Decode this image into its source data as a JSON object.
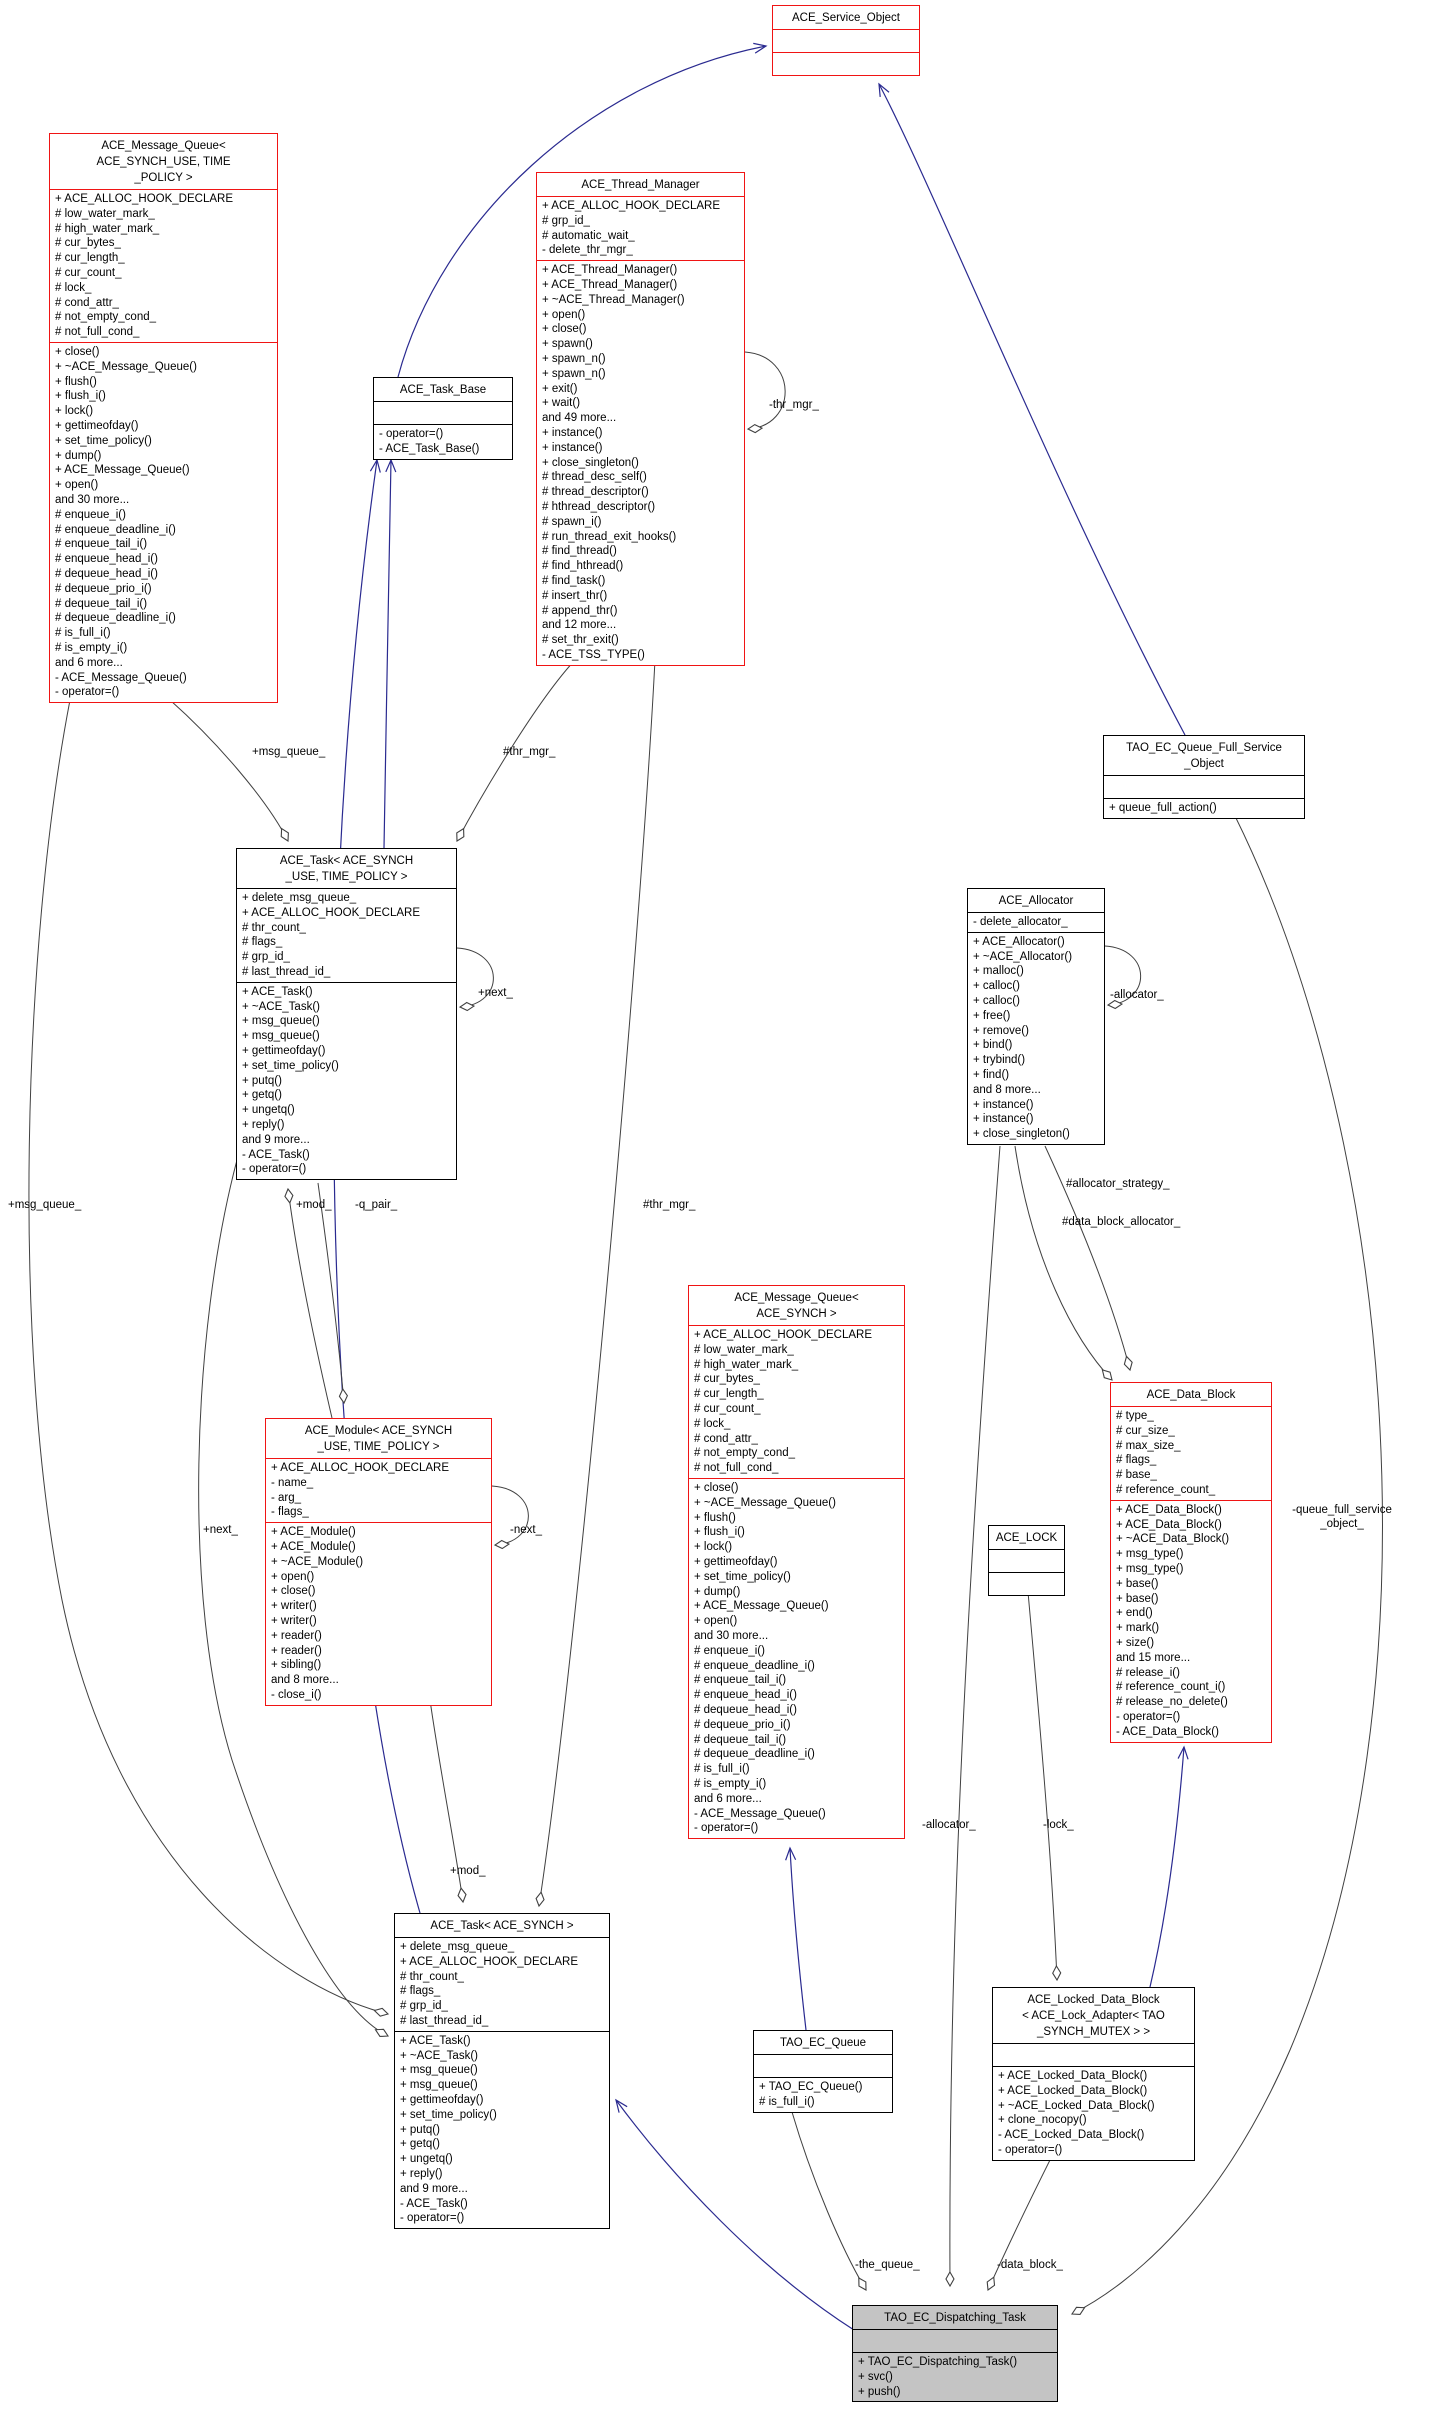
{
  "diagram": {
    "kind": "uml-collaboration-diagram",
    "subject": "TAO_EC_Dispatching_Task",
    "colors": {
      "inheritance_edge": "#2a2a90",
      "aggregation_edge": "#404040",
      "red_class_border": "#f01414",
      "black_class_border": "#000000",
      "highlight_fill": "#c4c4c4",
      "background": "#ffffff"
    }
  },
  "classes": [
    {
      "id": "service_object",
      "title": "ACE_Service_Object",
      "border": "red",
      "fill": "white",
      "attributes": [],
      "methods": []
    },
    {
      "id": "mq_tp",
      "title": "ACE_Message_Queue<\nACE_SYNCH_USE, TIME\n_POLICY >",
      "border": "red",
      "fill": "white",
      "attributes": [
        "+ ACE_ALLOC_HOOK_DECLARE",
        "# low_water_mark_",
        "# high_water_mark_",
        "# cur_bytes_",
        "# cur_length_",
        "# cur_count_",
        "# lock_",
        "# cond_attr_",
        "# not_empty_cond_",
        "# not_full_cond_"
      ],
      "methods": [
        "+ close()",
        "+ ~ACE_Message_Queue()",
        "+ flush()",
        "+ flush_i()",
        "+ lock()",
        "+ gettimeofday()",
        "+ set_time_policy()",
        "+ dump()",
        "+ ACE_Message_Queue()",
        "+ open()",
        "and 30 more...",
        "# enqueue_i()",
        "# enqueue_deadline_i()",
        "# enqueue_tail_i()",
        "# enqueue_head_i()",
        "# dequeue_head_i()",
        "# dequeue_prio_i()",
        "# dequeue_tail_i()",
        "# dequeue_deadline_i()",
        "# is_full_i()",
        "# is_empty_i()",
        "and 6 more...",
        "- ACE_Message_Queue()",
        "- operator=()"
      ]
    },
    {
      "id": "thread_manager",
      "title": "ACE_Thread_Manager",
      "border": "red",
      "fill": "white",
      "attributes": [
        "+ ACE_ALLOC_HOOK_DECLARE",
        "# grp_id_",
        "# automatic_wait_",
        "- delete_thr_mgr_"
      ],
      "methods": [
        "+ ACE_Thread_Manager()",
        "+ ACE_Thread_Manager()",
        "+ ~ACE_Thread_Manager()",
        "+ open()",
        "+ close()",
        "+ spawn()",
        "+ spawn_n()",
        "+ spawn_n()",
        "+ exit()",
        "+ wait()",
        "and 49 more...",
        "+ instance()",
        "+ instance()",
        "+ close_singleton()",
        "# thread_desc_self()",
        "# thread_descriptor()",
        "# hthread_descriptor()",
        "# spawn_i()",
        "# run_thread_exit_hooks()",
        "# find_thread()",
        "# find_hthread()",
        "# find_task()",
        "# insert_thr()",
        "# append_thr()",
        "and 12 more...",
        "# set_thr_exit()",
        "- ACE_TSS_TYPE()"
      ]
    },
    {
      "id": "task_base",
      "title": "ACE_Task_Base",
      "border": "black",
      "fill": "white",
      "attributes": [],
      "methods": [
        "- operator=()",
        "- ACE_Task_Base()"
      ]
    },
    {
      "id": "queue_full",
      "title": "TAO_EC_Queue_Full_Service\n_Object",
      "border": "black",
      "fill": "white",
      "attributes": [],
      "methods": [
        "+ queue_full_action()"
      ]
    },
    {
      "id": "task_tp",
      "title": "ACE_Task< ACE_SYNCH\n_USE, TIME_POLICY >",
      "border": "black",
      "fill": "white",
      "attributes": [
        "+ delete_msg_queue_",
        "+ ACE_ALLOC_HOOK_DECLARE",
        "# thr_count_",
        "# flags_",
        "# grp_id_",
        "# last_thread_id_"
      ],
      "methods": [
        "+ ACE_Task()",
        "+ ~ACE_Task()",
        "+ msg_queue()",
        "+ msg_queue()",
        "+ gettimeofday()",
        "+ set_time_policy()",
        "+ putq()",
        "+ getq()",
        "+ ungetq()",
        "+ reply()",
        "and 9 more...",
        "- ACE_Task()",
        "- operator=()"
      ]
    },
    {
      "id": "allocator",
      "title": "ACE_Allocator",
      "border": "black",
      "fill": "white",
      "attributes": [
        "- delete_allocator_"
      ],
      "methods": [
        "+ ACE_Allocator()",
        "+ ~ACE_Allocator()",
        "+ malloc()",
        "+ calloc()",
        "+ calloc()",
        "+ free()",
        "+ remove()",
        "+ bind()",
        "+ trybind()",
        "+ find()",
        "and 8 more...",
        "+ instance()",
        "+ instance()",
        "+ close_singleton()"
      ]
    },
    {
      "id": "module_tp",
      "title": "ACE_Module< ACE_SYNCH\n_USE, TIME_POLICY >",
      "border": "red",
      "fill": "white",
      "attributes": [
        "+ ACE_ALLOC_HOOK_DECLARE",
        "- name_",
        "- arg_",
        "- flags_"
      ],
      "methods": [
        "+ ACE_Module()",
        "+ ACE_Module()",
        "+ ~ACE_Module()",
        "+ open()",
        "+ close()",
        "+ writer()",
        "+ writer()",
        "+ reader()",
        "+ reader()",
        "+ sibling()",
        "and 8 more...",
        "- close_i()"
      ]
    },
    {
      "id": "mq_synch",
      "title": "ACE_Message_Queue<\nACE_SYNCH >",
      "border": "red",
      "fill": "white",
      "attributes": [
        "+ ACE_ALLOC_HOOK_DECLARE",
        "# low_water_mark_",
        "# high_water_mark_",
        "# cur_bytes_",
        "# cur_length_",
        "# cur_count_",
        "# lock_",
        "# cond_attr_",
        "# not_empty_cond_",
        "# not_full_cond_"
      ],
      "methods": [
        "+ close()",
        "+ ~ACE_Message_Queue()",
        "+ flush()",
        "+ flush_i()",
        "+ lock()",
        "+ gettimeofday()",
        "+ set_time_policy()",
        "+ dump()",
        "+ ACE_Message_Queue()",
        "+ open()",
        "and 30 more...",
        "# enqueue_i()",
        "# enqueue_deadline_i()",
        "# enqueue_tail_i()",
        "# enqueue_head_i()",
        "# dequeue_head_i()",
        "# dequeue_prio_i()",
        "# dequeue_tail_i()",
        "# dequeue_deadline_i()",
        "# is_full_i()",
        "# is_empty_i()",
        "and 6 more...",
        "- ACE_Message_Queue()",
        "- operator=()"
      ]
    },
    {
      "id": "data_block",
      "title": "ACE_Data_Block",
      "border": "red",
      "fill": "white",
      "attributes": [
        "# type_",
        "# cur_size_",
        "# max_size_",
        "# flags_",
        "# base_",
        "# reference_count_"
      ],
      "methods": [
        "+ ACE_Data_Block()",
        "+ ACE_Data_Block()",
        "+ ~ACE_Data_Block()",
        "+ msg_type()",
        "+ msg_type()",
        "+ base()",
        "+ base()",
        "+ end()",
        "+ mark()",
        "+ size()",
        "and 15 more...",
        "# release_i()",
        "# reference_count_i()",
        "# release_no_delete()",
        "- operator=()",
        "- ACE_Data_Block()"
      ]
    },
    {
      "id": "ace_lock",
      "title": "ACE_LOCK",
      "border": "black",
      "fill": "white",
      "attributes": [],
      "methods": []
    },
    {
      "id": "task_synch",
      "title": "ACE_Task< ACE_SYNCH >",
      "border": "black",
      "fill": "white",
      "attributes": [
        "+ delete_msg_queue_",
        "+ ACE_ALLOC_HOOK_DECLARE",
        "# thr_count_",
        "# flags_",
        "# grp_id_",
        "# last_thread_id_"
      ],
      "methods": [
        "+ ACE_Task()",
        "+ ~ACE_Task()",
        "+ msg_queue()",
        "+ msg_queue()",
        "+ gettimeofday()",
        "+ set_time_policy()",
        "+ putq()",
        "+ getq()",
        "+ ungetq()",
        "+ reply()",
        "and 9 more...",
        "- ACE_Task()",
        "- operator=()"
      ]
    },
    {
      "id": "ec_queue",
      "title": "TAO_EC_Queue",
      "border": "black",
      "fill": "white",
      "attributes": [],
      "methods": [
        "+ TAO_EC_Queue()",
        "# is_full_i()"
      ]
    },
    {
      "id": "locked_db",
      "title": "ACE_Locked_Data_Block\n< ACE_Lock_Adapter< TAO\n_SYNCH_MUTEX > >",
      "border": "black",
      "fill": "white",
      "attributes": [],
      "methods": [
        "+ ACE_Locked_Data_Block()",
        "+ ACE_Locked_Data_Block()",
        "+ ~ACE_Locked_Data_Block()",
        "+ clone_nocopy()",
        "- ACE_Locked_Data_Block()",
        "- operator=()"
      ]
    },
    {
      "id": "dispatching",
      "title": "TAO_EC_Dispatching_Task",
      "border": "black",
      "fill": "gray",
      "attributes": [],
      "methods": [
        "+ TAO_EC_Dispatching_Task()",
        "+ svc()",
        "+ push()"
      ]
    }
  ],
  "edges": [
    {
      "id": "e1",
      "kind": "inheritance",
      "from": "task_base",
      "to": "service_object",
      "label": ""
    },
    {
      "id": "e2",
      "kind": "inheritance",
      "from": "queue_full",
      "to": "service_object",
      "label": ""
    },
    {
      "id": "e3",
      "kind": "inheritance",
      "from": "task_tp",
      "to": "task_base",
      "label": ""
    },
    {
      "id": "e4",
      "kind": "inheritance",
      "from": "task_synch",
      "to": "task_base",
      "label": ""
    },
    {
      "id": "e5",
      "kind": "inheritance",
      "from": "ec_queue",
      "to": "mq_synch",
      "label": ""
    },
    {
      "id": "e6",
      "kind": "inheritance",
      "from": "locked_db",
      "to": "data_block",
      "label": ""
    },
    {
      "id": "e7",
      "kind": "inheritance",
      "from": "dispatching",
      "to": "task_synch",
      "label": ""
    },
    {
      "id": "e8",
      "kind": "aggregation",
      "from": "mq_tp",
      "to": "task_tp",
      "label": "+msg_queue_"
    },
    {
      "id": "e9",
      "kind": "aggregation",
      "from": "thread_manager",
      "to": "task_tp",
      "label": "#thr_mgr_"
    },
    {
      "id": "e10",
      "kind": "aggregation",
      "from": "thread_manager",
      "to": "thread_manager",
      "label": "-thr_mgr_"
    },
    {
      "id": "e11",
      "kind": "aggregation",
      "from": "task_tp",
      "to": "task_tp",
      "label": "+next_"
    },
    {
      "id": "e12",
      "kind": "aggregation",
      "from": "allocator",
      "to": "allocator",
      "label": "-allocator_"
    },
    {
      "id": "e13",
      "kind": "aggregation",
      "from": "module_tp",
      "to": "module_tp",
      "label": "-next_"
    },
    {
      "id": "e14",
      "kind": "aggregation",
      "from": "module_tp",
      "to": "task_tp",
      "label": "+mod_"
    },
    {
      "id": "e15",
      "kind": "aggregation",
      "from": "task_tp",
      "to": "module_tp",
      "label": "-q_pair_"
    },
    {
      "id": "e16",
      "kind": "aggregation",
      "from": "thread_manager",
      "to": "task_synch",
      "label": "#thr_mgr_"
    },
    {
      "id": "e17",
      "kind": "aggregation",
      "from": "mq_tp",
      "to": "task_synch",
      "label": "+msg_queue_"
    },
    {
      "id": "e18",
      "kind": "aggregation",
      "from": "task_tp",
      "to": "task_synch",
      "label": "+next_"
    },
    {
      "id": "e19",
      "kind": "aggregation",
      "from": "module_tp",
      "to": "task_synch",
      "label": "+mod_"
    },
    {
      "id": "e20",
      "kind": "aggregation",
      "from": "allocator",
      "to": "data_block",
      "label": "#allocator_strategy_"
    },
    {
      "id": "e21",
      "kind": "aggregation",
      "from": "allocator",
      "to": "data_block",
      "label": "#data_block_allocator_"
    },
    {
      "id": "e22",
      "kind": "aggregation",
      "from": "allocator",
      "to": "dispatching",
      "label": "-allocator_"
    },
    {
      "id": "e23",
      "kind": "aggregation",
      "from": "ace_lock",
      "to": "locked_db",
      "label": "-lock_"
    },
    {
      "id": "e24",
      "kind": "aggregation",
      "from": "ec_queue",
      "to": "dispatching",
      "label": "-the_queue_"
    },
    {
      "id": "e25",
      "kind": "aggregation",
      "from": "locked_db",
      "to": "dispatching",
      "label": "-data_block_"
    },
    {
      "id": "e26",
      "kind": "aggregation",
      "from": "queue_full",
      "to": "dispatching",
      "label": "-queue_full_service\n_object_"
    }
  ]
}
